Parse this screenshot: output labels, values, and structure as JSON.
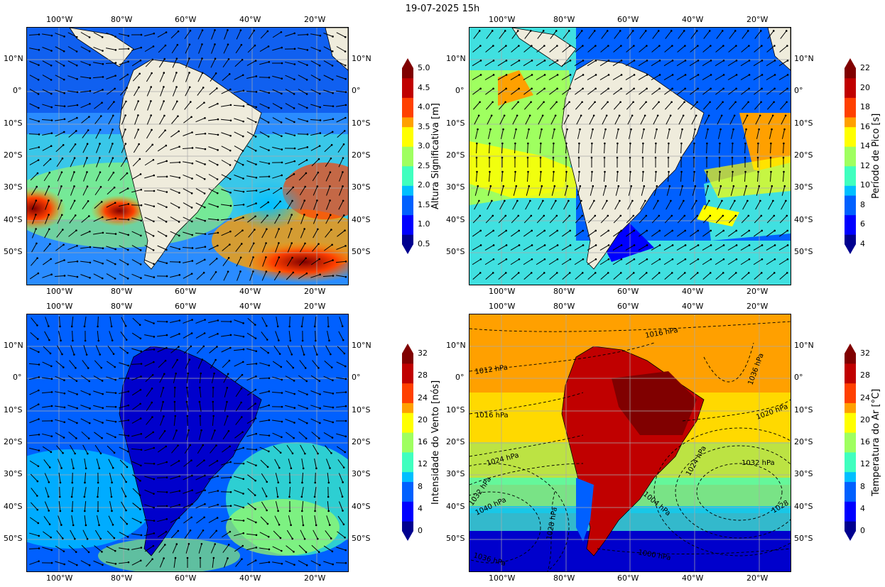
{
  "title": "19-07-2025 15h",
  "lon_ticks": [
    "100°W",
    "80°W",
    "60°W",
    "40°W",
    "20°W"
  ],
  "lat_ticks": [
    "10°N",
    "0°",
    "10°S",
    "20°S",
    "30°S",
    "40°S",
    "50°S"
  ],
  "panels": [
    {
      "id": "hs",
      "colorbar_label": "Altura Significativa [m]",
      "colorbar_ticks": [
        "5.0",
        "4.5",
        "4.0",
        "3.5",
        "3.0",
        "2.5",
        "2.0",
        "1.5",
        "1.0",
        "0.5"
      ],
      "colorbar_range": [
        0.5,
        5.0
      ]
    },
    {
      "id": "tp",
      "colorbar_label": "Período de Pico [s]",
      "colorbar_ticks": [
        "22",
        "20",
        "18",
        "16",
        "14",
        "12",
        "10",
        "8",
        "6",
        "4"
      ],
      "colorbar_range": [
        4,
        22
      ]
    },
    {
      "id": "wind",
      "colorbar_label": "Intensidade do Vento [nós]",
      "colorbar_ticks": [
        "32",
        "28",
        "24",
        "20",
        "16",
        "12",
        "8",
        "4",
        "0"
      ],
      "colorbar_range": [
        0,
        32
      ]
    },
    {
      "id": "temp",
      "colorbar_label": "Temperatura do Ar [°C]",
      "colorbar_ticks": [
        "32",
        "28",
        "24",
        "20",
        "16",
        "12",
        "8",
        "4",
        "0"
      ],
      "colorbar_range": [
        0,
        32
      ],
      "isobar_labels": [
        "1016 hPa",
        "1012 hPa",
        "1016 hPa",
        "1036 hPa",
        "1020 hPa",
        "1024 hPa",
        "1024 hPa",
        "1032 hPa",
        "1032 hPa",
        "1040 hPa",
        "1028 hPa",
        "1004 hPa",
        "1028",
        "1036 hPa",
        "1000 hPa"
      ]
    }
  ],
  "colors": {
    "land": "#efecdc",
    "jet": [
      "#00008f",
      "#0000ff",
      "#0060ff",
      "#00bfff",
      "#40ffbf",
      "#9fff60",
      "#ffff00",
      "#ffa000",
      "#ff4000",
      "#c00000",
      "#800000"
    ]
  }
}
